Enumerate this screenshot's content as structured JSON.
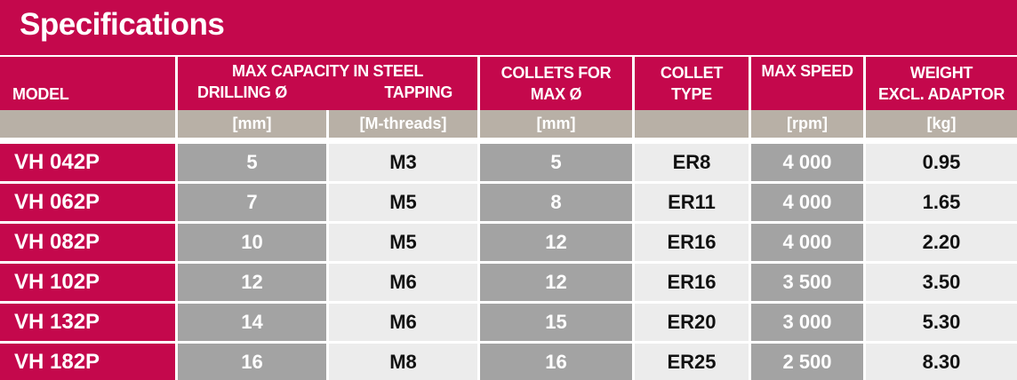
{
  "title": "Specifications",
  "headers": {
    "model": "MODEL",
    "max_capacity": "MAX CAPACITY IN STEEL",
    "drilling": "DRILLING Ø",
    "tapping": "TAPPING",
    "collets_line1": "COLLETS FOR",
    "collets_line2": "MAX Ø",
    "collet_type_line1": "COLLET",
    "collet_type_line2": "TYPE",
    "max_speed": "MAX SPEED",
    "weight_line1": "WEIGHT",
    "weight_line2": "EXCL. ADAPTOR"
  },
  "units": {
    "drilling": "[mm]",
    "tapping": "[M-threads]",
    "collets": "[mm]",
    "collet_type": "",
    "max_speed": "[rpm]",
    "weight": "[kg]"
  },
  "rows": [
    {
      "model": "VH 042P",
      "drilling": "5",
      "tapping": "M3",
      "collets": "5",
      "collet_type": "ER8",
      "max_speed": "4 000",
      "weight": "0.95"
    },
    {
      "model": "VH 062P",
      "drilling": "7",
      "tapping": "M5",
      "collets": "8",
      "collet_type": "ER11",
      "max_speed": "4 000",
      "weight": "1.65"
    },
    {
      "model": "VH 082P",
      "drilling": "10",
      "tapping": "M5",
      "collets": "12",
      "collet_type": "ER16",
      "max_speed": "4 000",
      "weight": "2.20"
    },
    {
      "model": "VH 102P",
      "drilling": "12",
      "tapping": "M6",
      "collets": "12",
      "collet_type": "ER16",
      "max_speed": "3 500",
      "weight": "3.50"
    },
    {
      "model": "VH 132P",
      "drilling": "14",
      "tapping": "M6",
      "collets": "15",
      "collet_type": "ER20",
      "max_speed": "3 000",
      "weight": "5.30"
    },
    {
      "model": "VH 182P",
      "drilling": "16",
      "tapping": "M8",
      "collets": "16",
      "collet_type": "ER25",
      "max_speed": "2 500",
      "weight": "8.30"
    }
  ]
}
